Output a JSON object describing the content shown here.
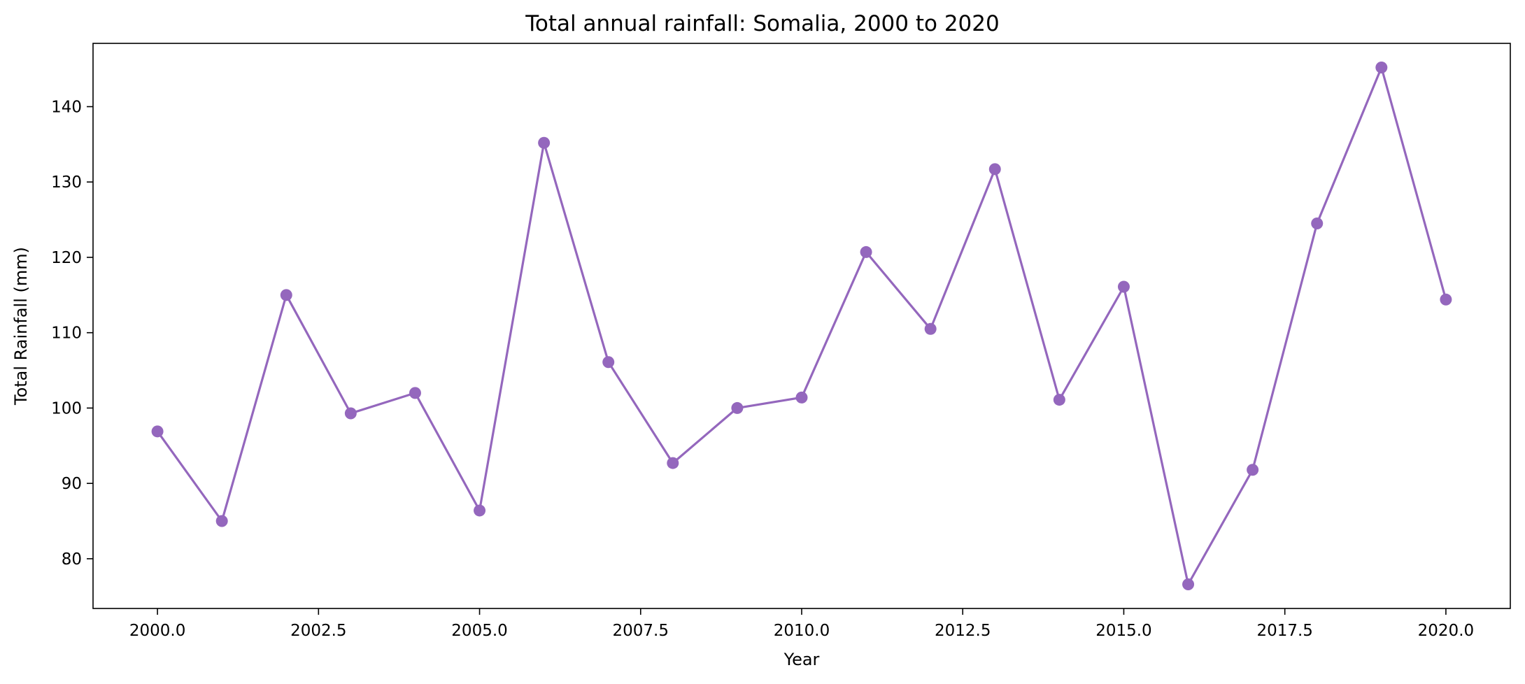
{
  "chart_data": {
    "type": "line",
    "title": "Total annual rainfall: Somalia, 2000 to 2020",
    "xlabel": "Year",
    "ylabel": "Total Rainfall (mm)",
    "xlim": [
      1999,
      2021
    ],
    "ylim": [
      73.4,
      148.4
    ],
    "xticks": [
      2000.0,
      2002.5,
      2005.0,
      2007.5,
      2010.0,
      2012.5,
      2015.0,
      2017.5,
      2020.0
    ],
    "xtick_labels": [
      "2000.0",
      "2002.5",
      "2005.0",
      "2007.5",
      "2010.0",
      "2012.5",
      "2015.0",
      "2017.5",
      "2020.0"
    ],
    "yticks": [
      80,
      90,
      100,
      110,
      120,
      130,
      140
    ],
    "ytick_labels": [
      "80",
      "90",
      "100",
      "110",
      "120",
      "130",
      "140"
    ],
    "grid": false,
    "color": "#9467bd",
    "x": [
      2000,
      2001,
      2002,
      2003,
      2004,
      2005,
      2006,
      2007,
      2008,
      2009,
      2010,
      2011,
      2012,
      2013,
      2014,
      2015,
      2016,
      2017,
      2018,
      2019,
      2020
    ],
    "values": [
      96.9,
      85.0,
      115.0,
      99.3,
      102.0,
      86.4,
      135.2,
      106.1,
      92.7,
      100.0,
      101.4,
      120.7,
      110.5,
      131.7,
      101.1,
      116.1,
      76.6,
      91.8,
      124.5,
      145.2,
      114.4
    ]
  }
}
